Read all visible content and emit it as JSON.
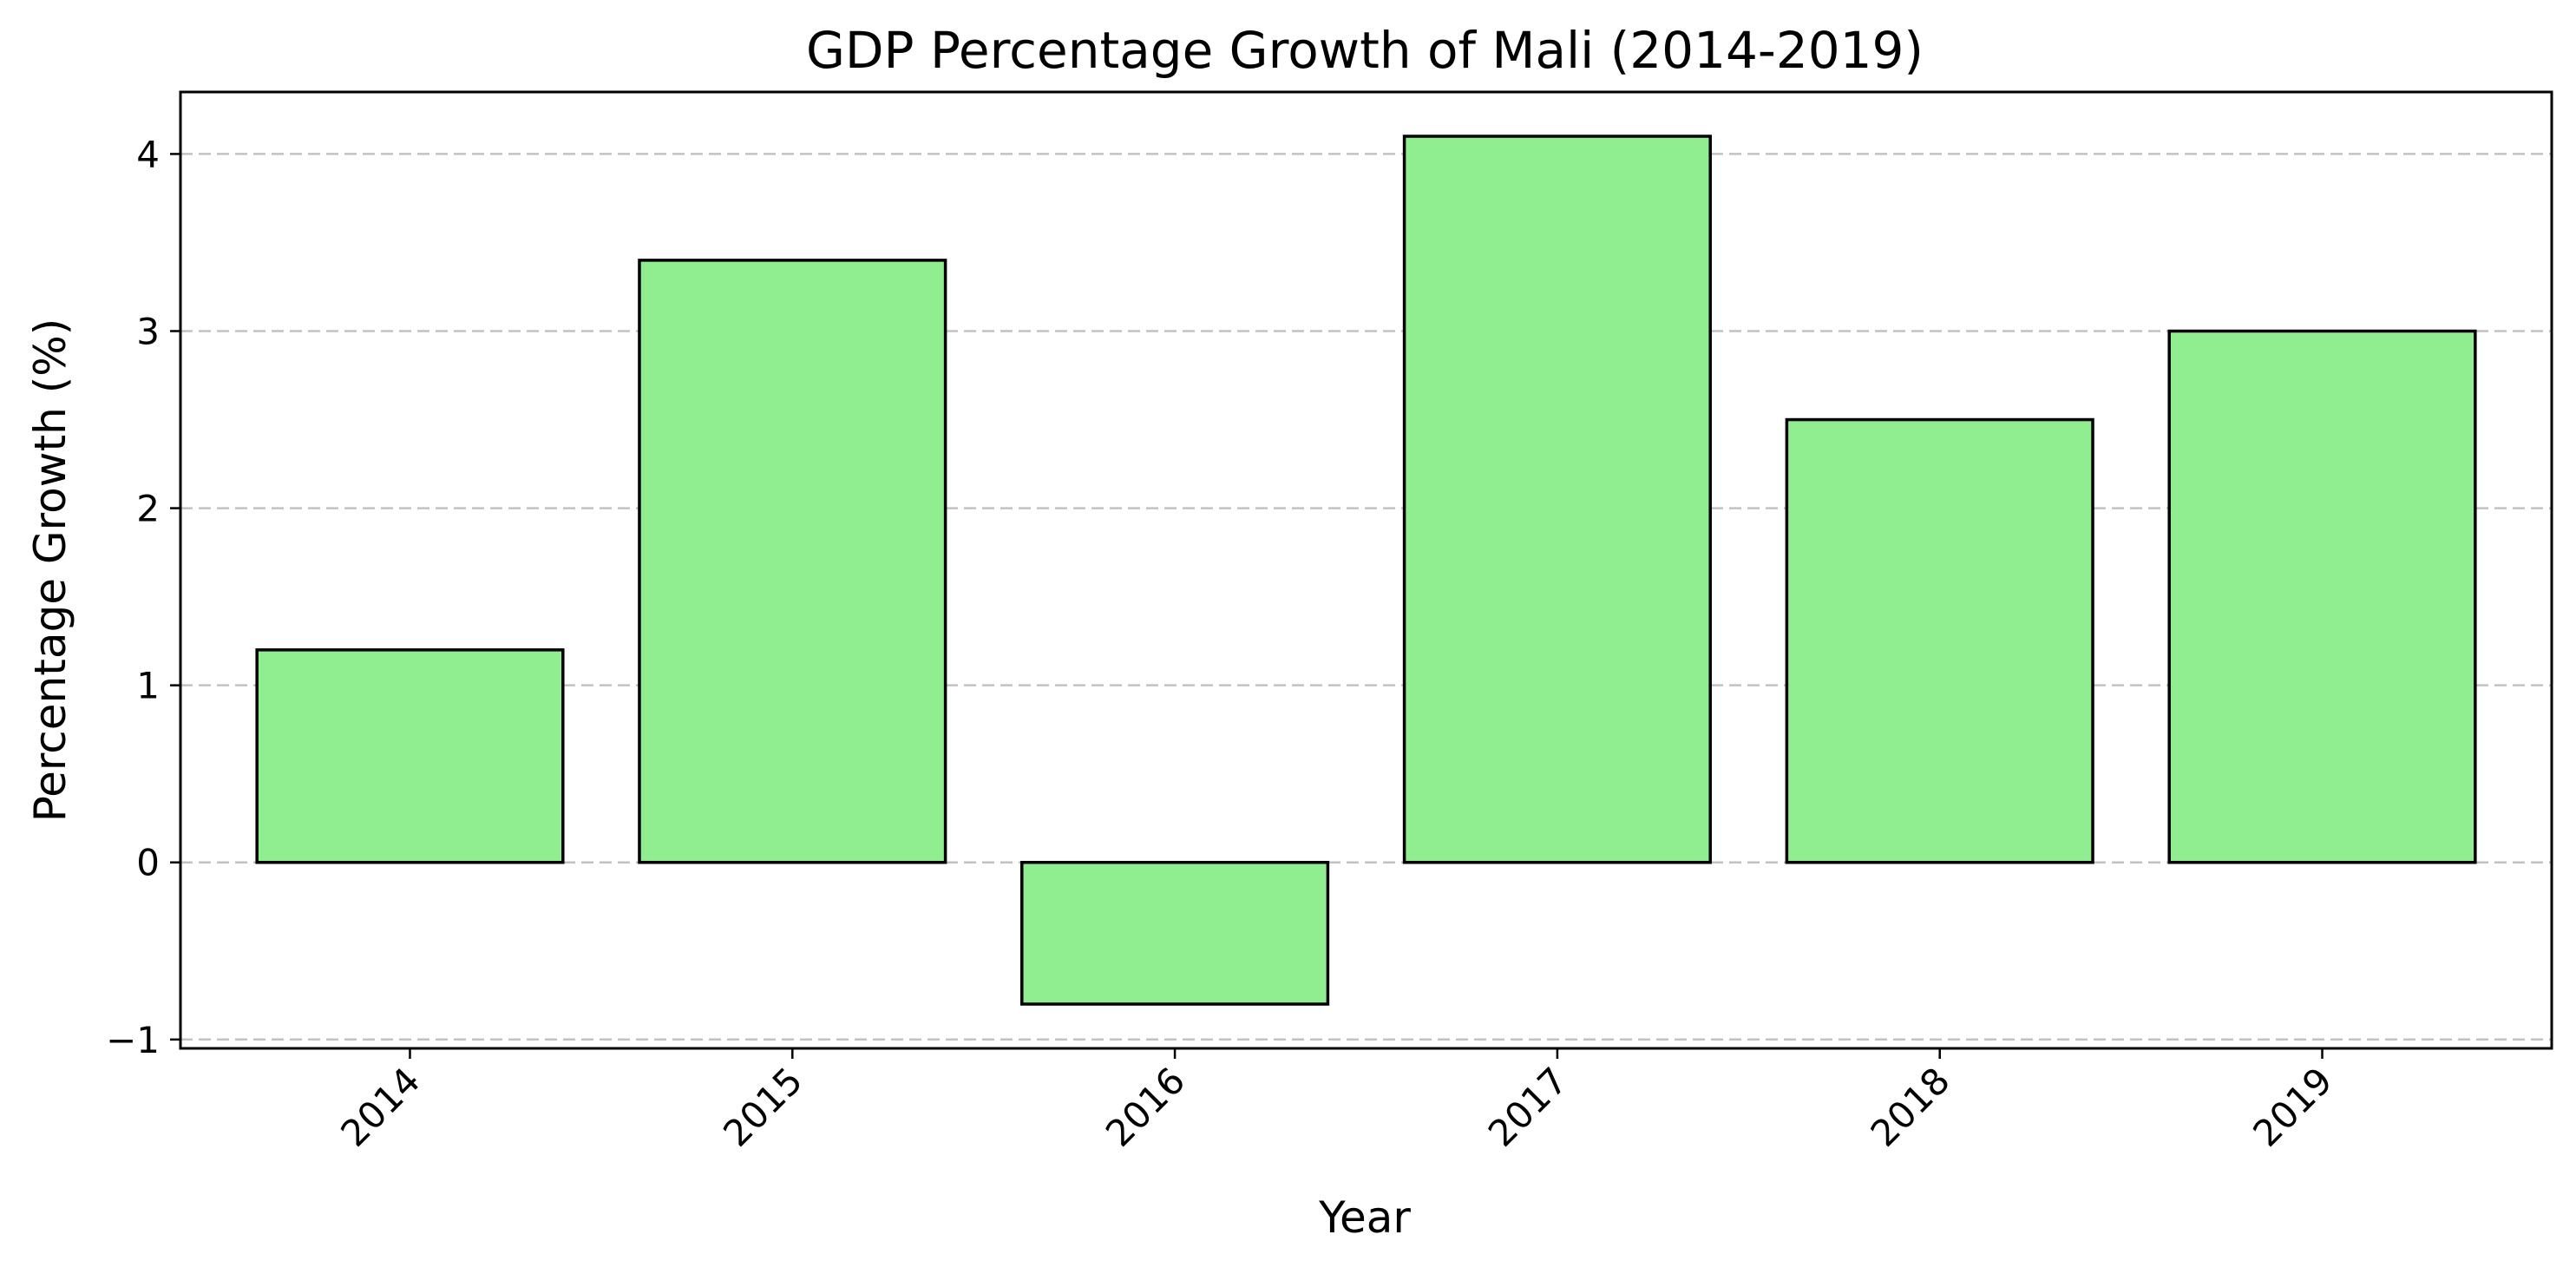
{
  "chart_data": {
    "type": "bar",
    "title": "GDP Percentage Growth of Mali (2014-2019)",
    "xlabel": "Year",
    "ylabel": "Percentage Growth (%)",
    "categories": [
      "2014",
      "2015",
      "2016",
      "2017",
      "2018",
      "2019"
    ],
    "values": [
      1.2,
      3.4,
      -0.8,
      4.1,
      2.5,
      3.0
    ],
    "ylim": [
      -1.05,
      4.35
    ],
    "yticks": [
      -1,
      0,
      1,
      2,
      3,
      4
    ],
    "ytick_labels": [
      "−1",
      "0",
      "1",
      "2",
      "3",
      "4"
    ],
    "grid": "horizontal dashed",
    "legend": "none",
    "colors": {
      "bar_fill": "#90ee90",
      "bar_edge": "#000000",
      "grid": "#c2c2c2",
      "axes": "#000000"
    }
  }
}
